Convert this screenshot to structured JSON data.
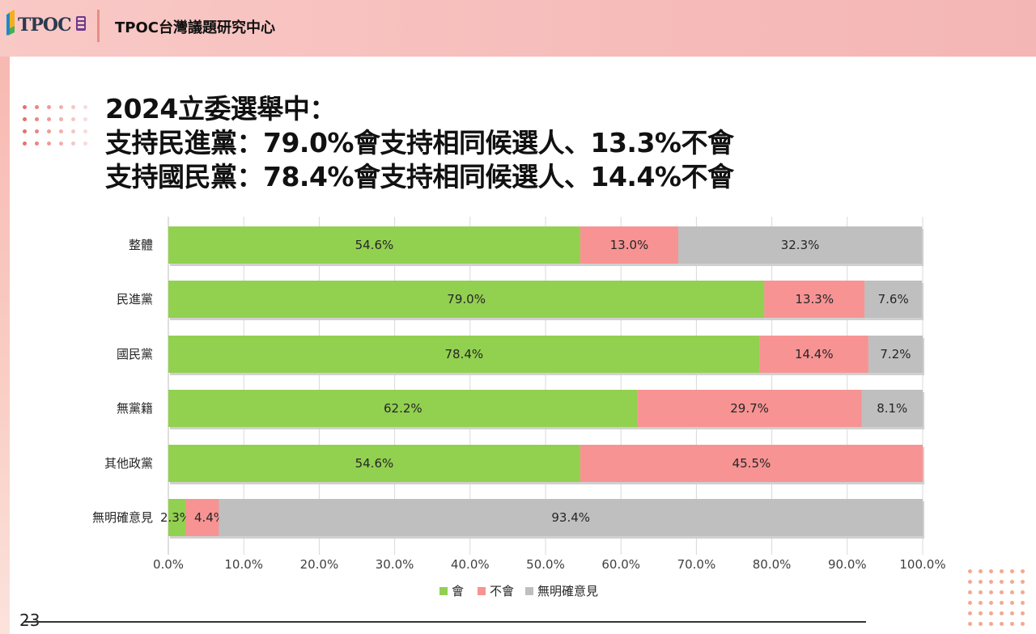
{
  "header": {
    "logo_text": "TPOC",
    "org_name": "TPOC台灣議題研究中心"
  },
  "title": {
    "line1": "2024立委選舉中：",
    "line2": "支持民進黨：79.0%會支持相同候選人、13.3%不會",
    "line3": "支持國民黨：78.4%會支持相同候選人、14.4%不會"
  },
  "colors": {
    "will": "#92d050",
    "will_not": "#f79393",
    "no_opinion": "#bfbfbf"
  },
  "chart_data": {
    "type": "bar",
    "orientation": "horizontal",
    "stacked": true,
    "categories": [
      "整體",
      "民進黨",
      "國民黨",
      "無黨籍",
      "其他政黨",
      "無明確意見"
    ],
    "series": [
      {
        "name": "會",
        "values": [
          54.6,
          79.0,
          78.4,
          62.2,
          54.6,
          2.3
        ],
        "labels": [
          "54.6%",
          "79.0%",
          "78.4%",
          "62.2%",
          "54.6%",
          "2.3%"
        ]
      },
      {
        "name": "不會",
        "values": [
          13.0,
          13.3,
          14.4,
          29.7,
          45.5,
          4.4
        ],
        "labels": [
          "13.0%",
          "13.3%",
          "14.4%",
          "29.7%",
          "45.5%",
          "4.4%"
        ]
      },
      {
        "name": "無明確意見",
        "values": [
          32.3,
          7.6,
          7.2,
          8.1,
          0,
          93.4
        ],
        "labels": [
          "32.3%",
          "7.6%",
          "7.2%",
          "8.1%",
          "",
          "93.4%"
        ]
      }
    ],
    "xlim": [
      0,
      100
    ],
    "xticks": [
      "0.0%",
      "10.0%",
      "20.0%",
      "30.0%",
      "40.0%",
      "50.0%",
      "60.0%",
      "70.0%",
      "80.0%",
      "90.0%",
      "100.0%"
    ],
    "grid": true,
    "legend_position": "bottom"
  },
  "footer": {
    "page_number": "23"
  }
}
